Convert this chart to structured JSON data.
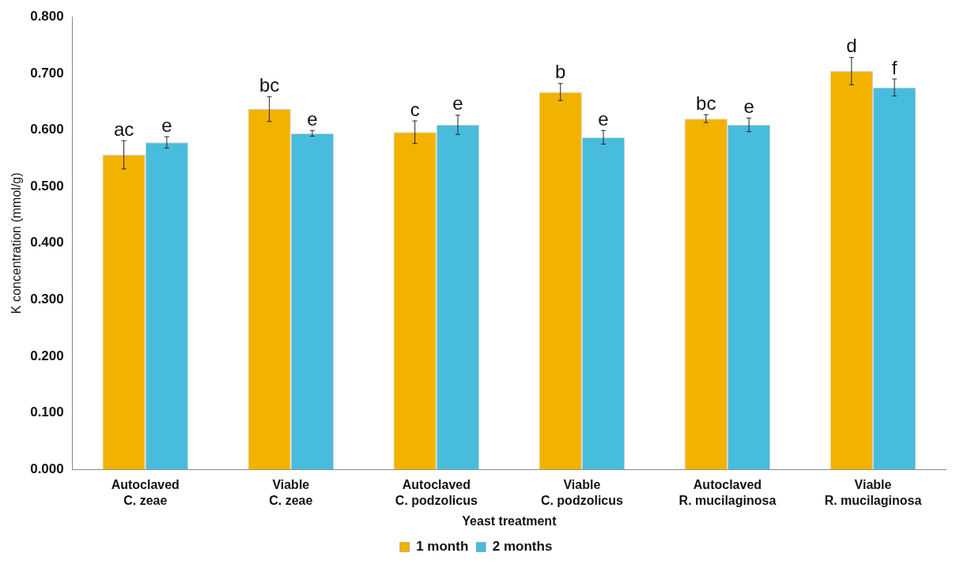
{
  "chart_data": {
    "type": "bar",
    "xlabel": "Yeast treatment",
    "ylabel": "K concentration (mmol/g)",
    "categories": [
      "Autoclaved\nC. zeae",
      "Viable\nC. zeae",
      "Autoclaved\nC. podzolicus",
      "Viable\nC. podzolicus",
      "Autoclaved\nR. mucilaginosa",
      "Viable\nR. mucilaginosa"
    ],
    "series": [
      {
        "name": "1 month",
        "color": "#f2b200",
        "values": [
          0.556,
          0.637,
          0.596,
          0.667,
          0.62,
          0.704
        ],
        "errors": [
          0.025,
          0.022,
          0.02,
          0.015,
          0.007,
          0.024
        ],
        "value_labels": [
          "ac",
          "bc",
          "c",
          "b",
          "bc",
          "d"
        ]
      },
      {
        "name": "2 months",
        "color": "#48bcdc",
        "values": [
          0.578,
          0.594,
          0.609,
          0.587,
          0.609,
          0.675
        ],
        "errors": [
          0.01,
          0.005,
          0.017,
          0.012,
          0.012,
          0.015
        ],
        "value_labels": [
          "e",
          "e",
          "e",
          "e",
          "e",
          "f"
        ]
      }
    ],
    "ylim": [
      0,
      0.8
    ],
    "yticks": [
      {
        "value": 0,
        "label": "0.000"
      },
      {
        "value": 0.1,
        "label": "0.100"
      },
      {
        "value": 0.2,
        "label": "0.200"
      },
      {
        "value": 0.3,
        "label": "0.300"
      },
      {
        "value": 0.4,
        "label": "0.400"
      },
      {
        "value": 0.5,
        "label": "0.500"
      },
      {
        "value": 0.6,
        "label": "0.600"
      },
      {
        "value": 0.7,
        "label": "0.700"
      },
      {
        "value": 0.8,
        "label": "0.800"
      }
    ],
    "legend": "bottom",
    "grid": false
  }
}
